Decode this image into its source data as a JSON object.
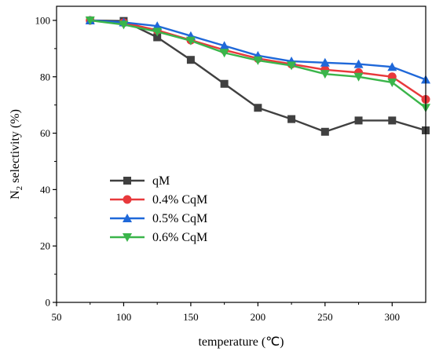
{
  "chart_data": {
    "type": "line",
    "xlabel": "temperature (℃)",
    "ylabel_main": "N",
    "ylabel_sub": "2",
    "ylabel_rest": " selectivity (%)",
    "xlim": [
      50,
      325
    ],
    "ylim": [
      0,
      105
    ],
    "x_ticks": [
      50,
      100,
      150,
      200,
      250,
      300
    ],
    "y_ticks": [
      0,
      20,
      40,
      60,
      80,
      100
    ],
    "grid": false,
    "legend_position": "center-left",
    "x": [
      75,
      100,
      125,
      150,
      175,
      200,
      225,
      250,
      275,
      300,
      325
    ],
    "series": [
      {
        "name": "qM",
        "color": "#404040",
        "marker": "square",
        "values": [
          100,
          99.8,
          94,
          86,
          77.5,
          69,
          65,
          60.5,
          64.5,
          64.5,
          61
        ]
      },
      {
        "name": "0.4% CqM",
        "color": "#e8393c",
        "marker": "circle",
        "values": [
          100,
          99.2,
          96.5,
          93,
          89.5,
          86.5,
          84.5,
          82.5,
          81.5,
          80,
          72
        ]
      },
      {
        "name": "0.5% CqM",
        "color": "#1f68d9",
        "marker": "triangle-up",
        "values": [
          100,
          99.3,
          98,
          94.5,
          91,
          87.5,
          85.5,
          85,
          84.5,
          83.5,
          79
        ]
      },
      {
        "name": "0.6% CqM",
        "color": "#3ab54a",
        "marker": "triangle-down",
        "values": [
          100,
          98.5,
          96,
          92.8,
          88.5,
          85.8,
          84,
          81,
          80,
          78,
          69
        ]
      }
    ]
  }
}
